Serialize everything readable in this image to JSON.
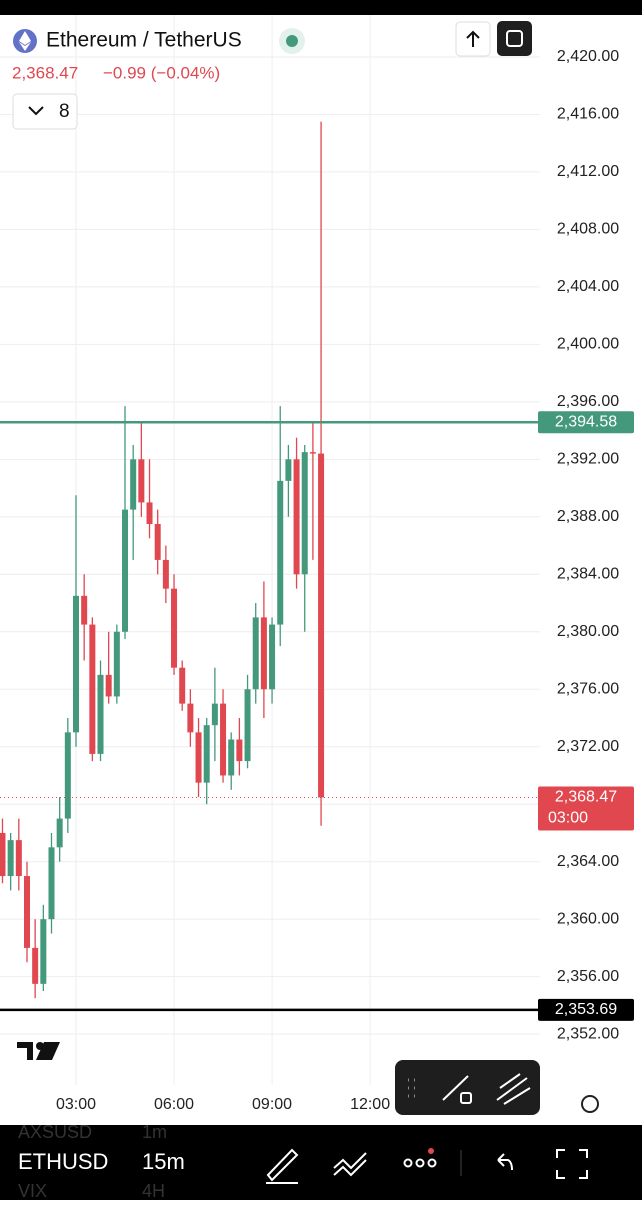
{
  "header": {
    "symbol": "Ethereum / TetherUS",
    "price": "2,368.47",
    "change": "−0.99 (−0.04%)",
    "indicators": "8"
  },
  "chart_data": {
    "type": "candlestick",
    "x": [
      0.75,
      1,
      1.25,
      1.5,
      1.75,
      2,
      2.25,
      2.5,
      2.75,
      3,
      3.25,
      3.5,
      3.75,
      4,
      4.25,
      4.5,
      4.75,
      5,
      5.25,
      5.5,
      5.75,
      6,
      6.25,
      6.5,
      6.75,
      7,
      7.25,
      7.5,
      7.75,
      8,
      8.25,
      8.5,
      8.75,
      9,
      9.25,
      9.5,
      9.75,
      10,
      10.25,
      10.5
    ],
    "open": [
      2366,
      2363,
      2365.5,
      2363,
      2358,
      2355.5,
      2360,
      2365,
      2367,
      2373,
      2382.5,
      2380.5,
      2371.5,
      2377,
      2375.5,
      2380,
      2388.5,
      2392,
      2389,
      2387.5,
      2385,
      2383,
      2377.5,
      2375,
      2373,
      2369.5,
      2373.5,
      2375,
      2370,
      2372.5,
      2371,
      2376,
      2381,
      2376,
      2380.5,
      2390.5,
      2392,
      2384,
      2392.5,
      2392.4
    ],
    "high": [
      2367,
      2366,
      2367,
      2364,
      2360,
      2361,
      2366,
      2368.5,
      2374,
      2389.5,
      2384,
      2381,
      2378,
      2380,
      2380.5,
      2395.7,
      2393,
      2394.5,
      2392,
      2388.5,
      2386,
      2384,
      2378,
      2376,
      2374,
      2374,
      2377.5,
      2376,
      2373,
      2374,
      2377,
      2382,
      2383.5,
      2381,
      2395.7,
      2393,
      2393.5,
      2393,
      2394.6,
      2415.5
    ],
    "low": [
      2362.5,
      2362,
      2362,
      2357,
      2354.5,
      2355,
      2359,
      2364,
      2366,
      2372,
      2378,
      2371,
      2371,
      2375,
      2375,
      2379.5,
      2385,
      2388,
      2386.5,
      2384,
      2382,
      2377,
      2374.5,
      2372,
      2368.5,
      2368,
      2371,
      2369.5,
      2369,
      2370,
      2370.5,
      2375,
      2374,
      2375,
      2379,
      2388,
      2383,
      2380,
      2385,
      2366.5
    ],
    "close": [
      2363,
      2365.5,
      2363,
      2358,
      2355.5,
      2360,
      2365,
      2367,
      2373,
      2382.5,
      2380.5,
      2371.5,
      2377,
      2375.5,
      2380,
      2388.5,
      2392,
      2389,
      2387.5,
      2385,
      2383,
      2377.5,
      2375,
      2373,
      2369.5,
      2373.5,
      2375,
      2370,
      2372.5,
      2371,
      2376,
      2381,
      2376,
      2380.5,
      2390.5,
      2392,
      2384,
      2392.5,
      2392.4,
      2368.47
    ],
    "up_color": "#44997d",
    "down_color": "#e0474f",
    "xlim": [
      0.674,
      17.2
    ],
    "ylim": [
      2348.46,
      2422.92
    ],
    "xticks": [
      {
        "value": 3,
        "label": "03:00"
      },
      {
        "value": 6,
        "label": "06:00"
      },
      {
        "value": 9,
        "label": "09:00"
      },
      {
        "value": 12,
        "label": "12:00"
      }
    ],
    "yticks": [
      {
        "value": 2352,
        "label": "2,352.00"
      },
      {
        "value": 2356,
        "label": "2,356.00"
      },
      {
        "value": 2360,
        "label": "2,360.00"
      },
      {
        "value": 2364,
        "label": "2,364.00"
      },
      {
        "value": 2368,
        "label": "2,368.00"
      },
      {
        "value": 2372,
        "label": "2,372.00"
      },
      {
        "value": 2376,
        "label": "2,376.00"
      },
      {
        "value": 2380,
        "label": "2,380.00"
      },
      {
        "value": 2384,
        "label": "2,384.00"
      },
      {
        "value": 2388,
        "label": "2,388.00"
      },
      {
        "value": 2392,
        "label": "2,392.00"
      },
      {
        "value": 2396,
        "label": "2,396.00"
      },
      {
        "value": 2400,
        "label": "2,400.00"
      },
      {
        "value": 2404,
        "label": "2,404.00"
      },
      {
        "value": 2408,
        "label": "2,408.00"
      },
      {
        "value": 2412,
        "label": "2,412.00"
      },
      {
        "value": 2416,
        "label": "2,416.00"
      },
      {
        "value": 2420,
        "label": "2,420.00"
      }
    ],
    "grid": true,
    "price_lines": [
      {
        "value": 2394.58,
        "label": "2,394.58",
        "color": "#44997d",
        "style": "solid"
      },
      {
        "value": 2353.69,
        "label": "2,353.69",
        "color": "#000000",
        "style": "solid"
      },
      {
        "value": 2368.47,
        "label": "2,368.47",
        "color": "#e0474f",
        "style": "dotted",
        "countdown": "03:00"
      }
    ]
  },
  "toolbar": {
    "symbol": "ETHUSD",
    "interval": "15m",
    "behind": [
      "AXSUSD",
      "1m",
      "VIX",
      "4H"
    ]
  }
}
